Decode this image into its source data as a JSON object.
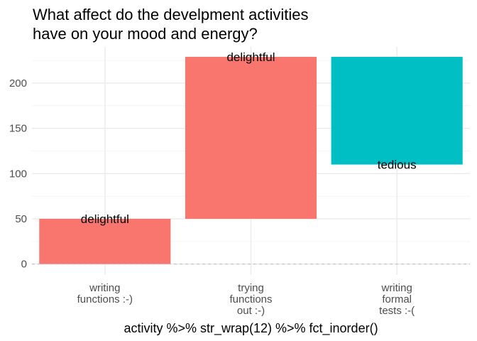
{
  "chart_data": {
    "type": "bar",
    "subtype": "waterfall",
    "title": "What affect do the develpment activities\nhave on your mood and energy?",
    "xlabel": "activity %>% str_wrap(12) %>% fct_inorder()",
    "ylabel": "",
    "categories": [
      "writing\nfunctions :-)",
      "trying\nfunctions\nout :-)",
      "writing\nformal\ntests :-("
    ],
    "bars": [
      {
        "category": "writing\nfunctions :-)",
        "start": 0,
        "end": 50,
        "label": "delightful",
        "label_at": "end",
        "color": "#F8766D"
      },
      {
        "category": "trying\nfunctions\nout :-)",
        "start": 50,
        "end": 229,
        "label": "delightful",
        "label_at": "end",
        "color": "#F8766D"
      },
      {
        "category": "writing\nformal\ntests :-(",
        "start": 229,
        "end": 110,
        "label": "tedious",
        "label_at": "end",
        "color": "#00BFC4"
      }
    ],
    "yticks": [
      0,
      50,
      100,
      150,
      200
    ],
    "ylim": [
      -12,
      240
    ],
    "reference_line": {
      "y": 0,
      "style": "dashed",
      "color": "#bebebe"
    },
    "legend": "none",
    "grid": true,
    "theme": "minimal"
  }
}
